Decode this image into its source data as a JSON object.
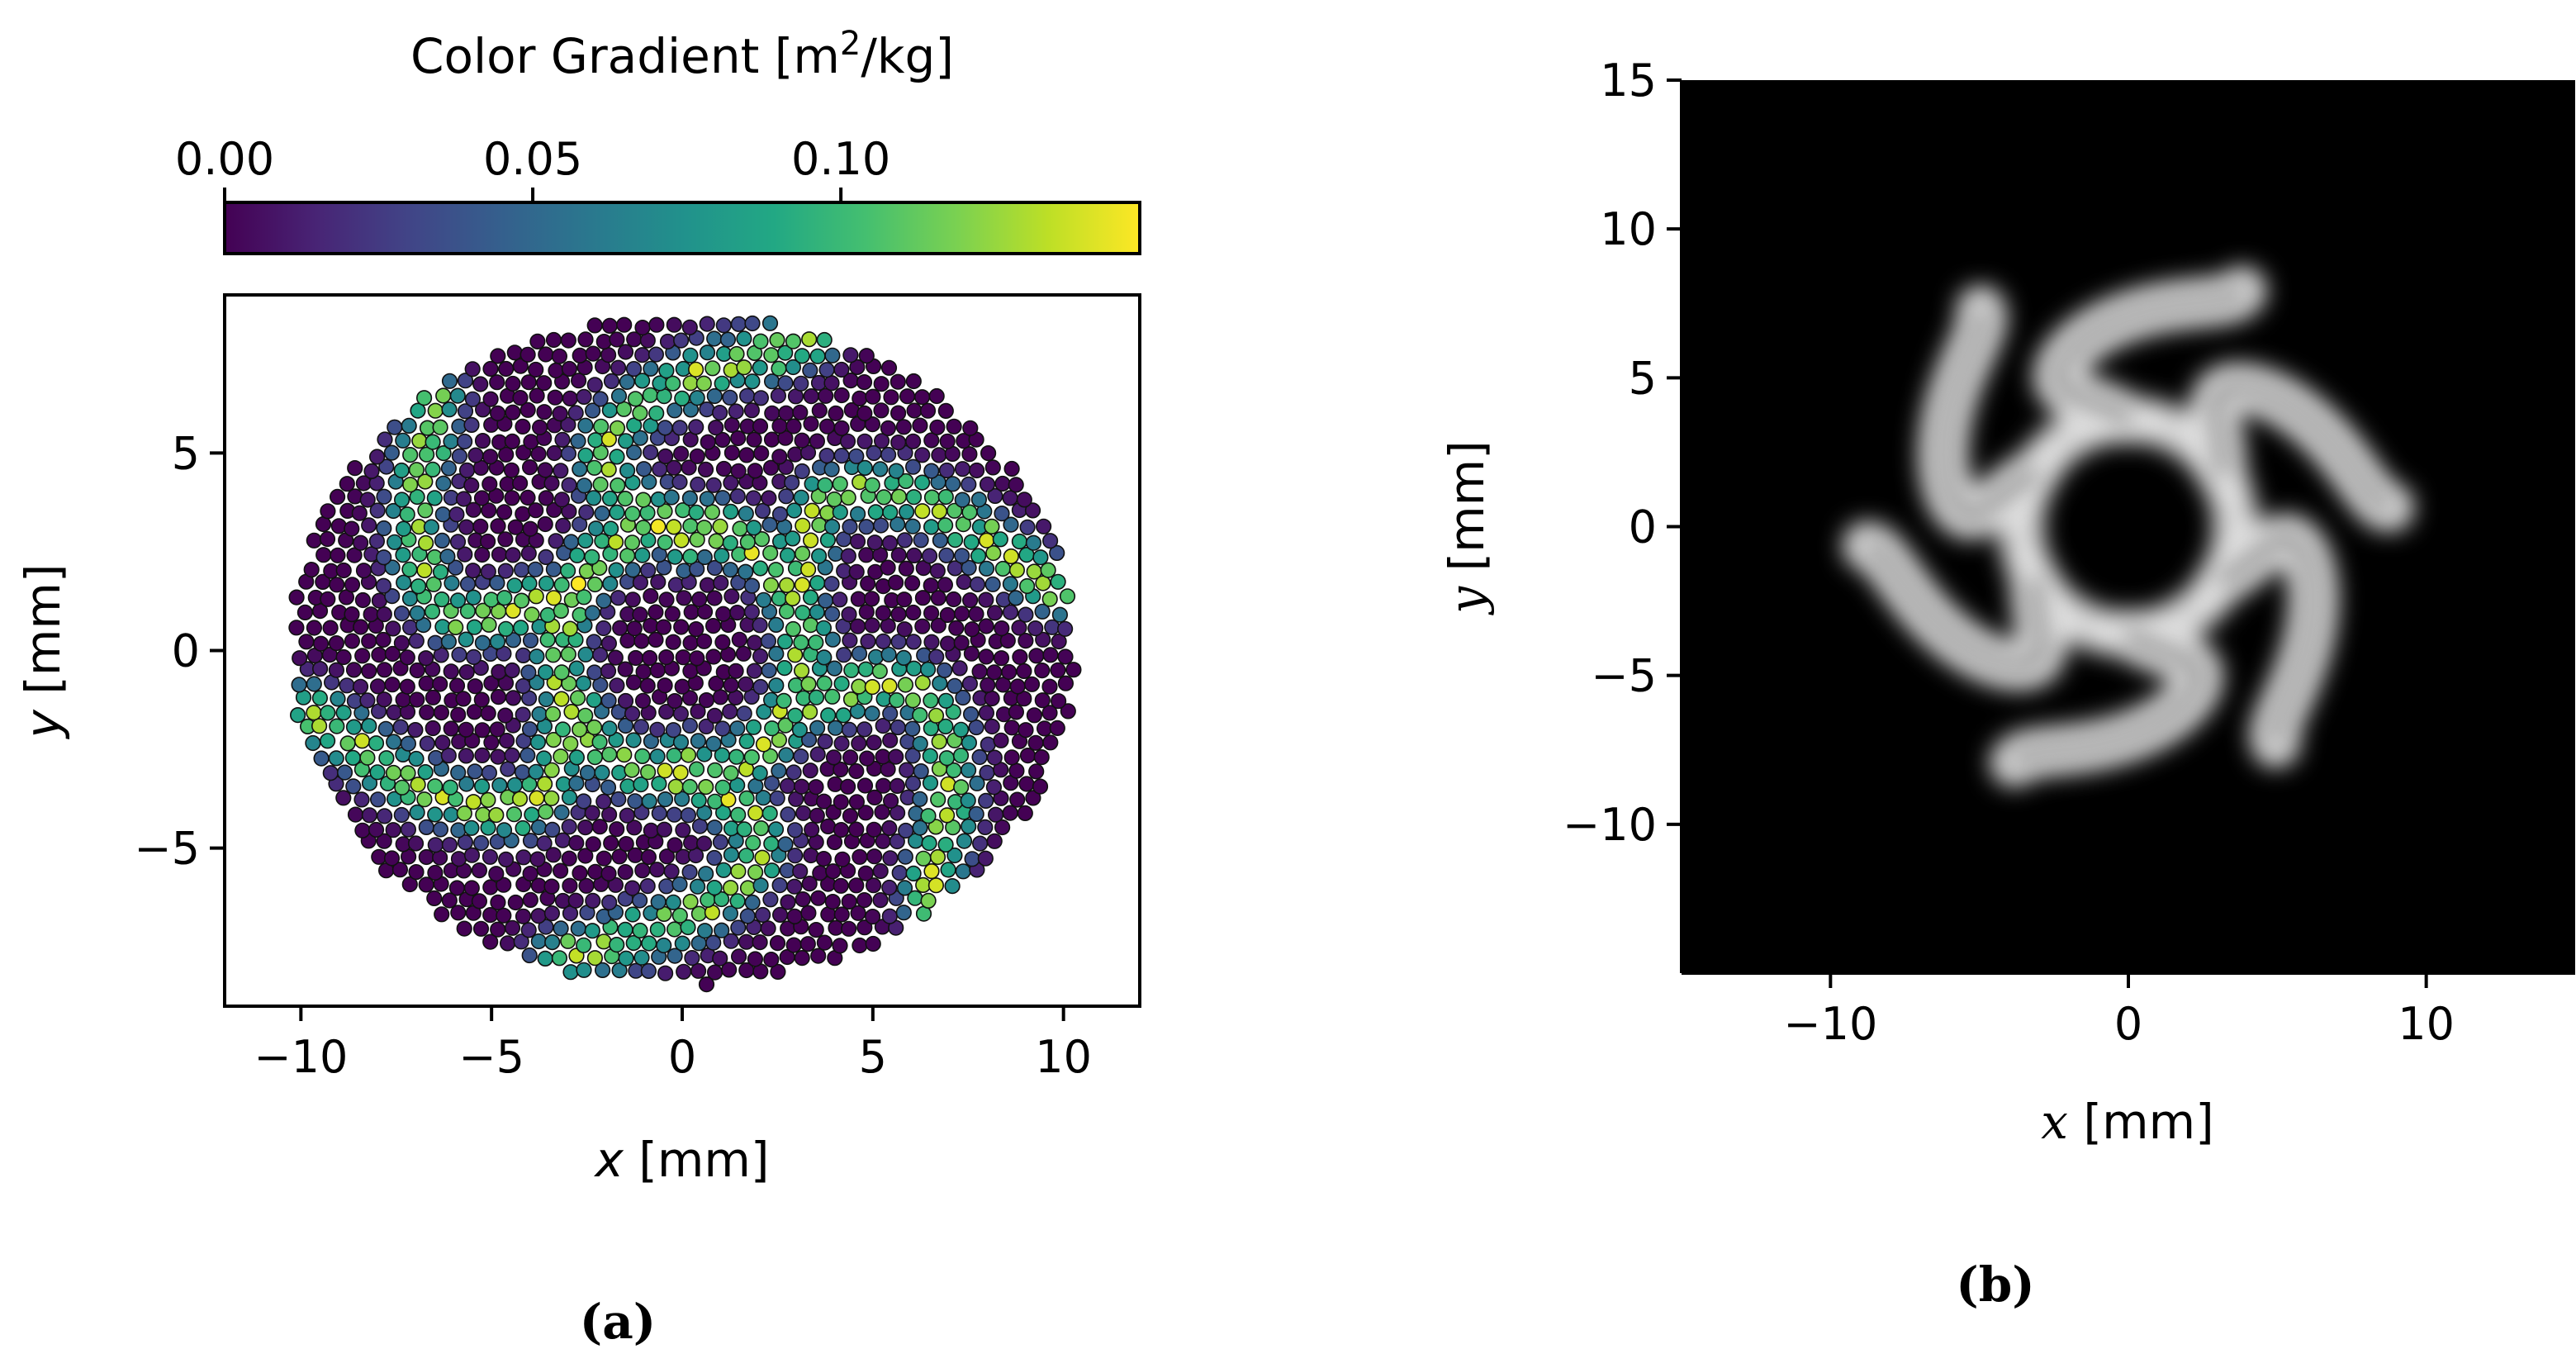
{
  "chart_data": [
    {
      "type": "scatter",
      "panel_label": "(a)",
      "xlabel_var": "x",
      "xlabel_unit": " [mm]",
      "ylabel_var": "y",
      "ylabel_unit": " [mm]",
      "xlim": [
        -12,
        12
      ],
      "ylim": [
        -9,
        9
      ],
      "xticks": [
        -10,
        -5,
        0,
        5,
        10
      ],
      "yticks": [
        -5,
        0,
        5
      ],
      "colorbar": {
        "label_main": "Color Gradient [m",
        "label_sup": "2",
        "label_end": "/kg]",
        "range": [
          0,
          0.1485
        ],
        "ticks": [
          "0.00",
          "0.05",
          "0.10"
        ],
        "tick_values": [
          0.0,
          0.05,
          0.1
        ],
        "colormap": "viridis",
        "location": "top"
      },
      "domain_radius_x": 10.3,
      "domain_radius_y": 8.5,
      "pattern": "six-armed band of high color gradient, inner ring radius about 3 mm, arms ending near x = ±9 mm and y = -8.5 mm / +8.5 mm",
      "marker_edgecolor": "#000000"
    },
    {
      "type": "heatmap",
      "panel_label": "(b)",
      "xlabel_var": "x",
      "xlabel_unit": " [mm]",
      "ylabel_var": "y",
      "ylabel_unit": " [mm]",
      "xlim": [
        -15,
        15
      ],
      "ylim": [
        -15,
        15
      ],
      "xticks": [
        -10,
        0,
        10
      ],
      "yticks": [
        -10,
        -5,
        0,
        5,
        10,
        15
      ],
      "colormap": "gray",
      "background": "#000000",
      "pattern": "blurred white six-armed star-shaped band on black background"
    }
  ]
}
